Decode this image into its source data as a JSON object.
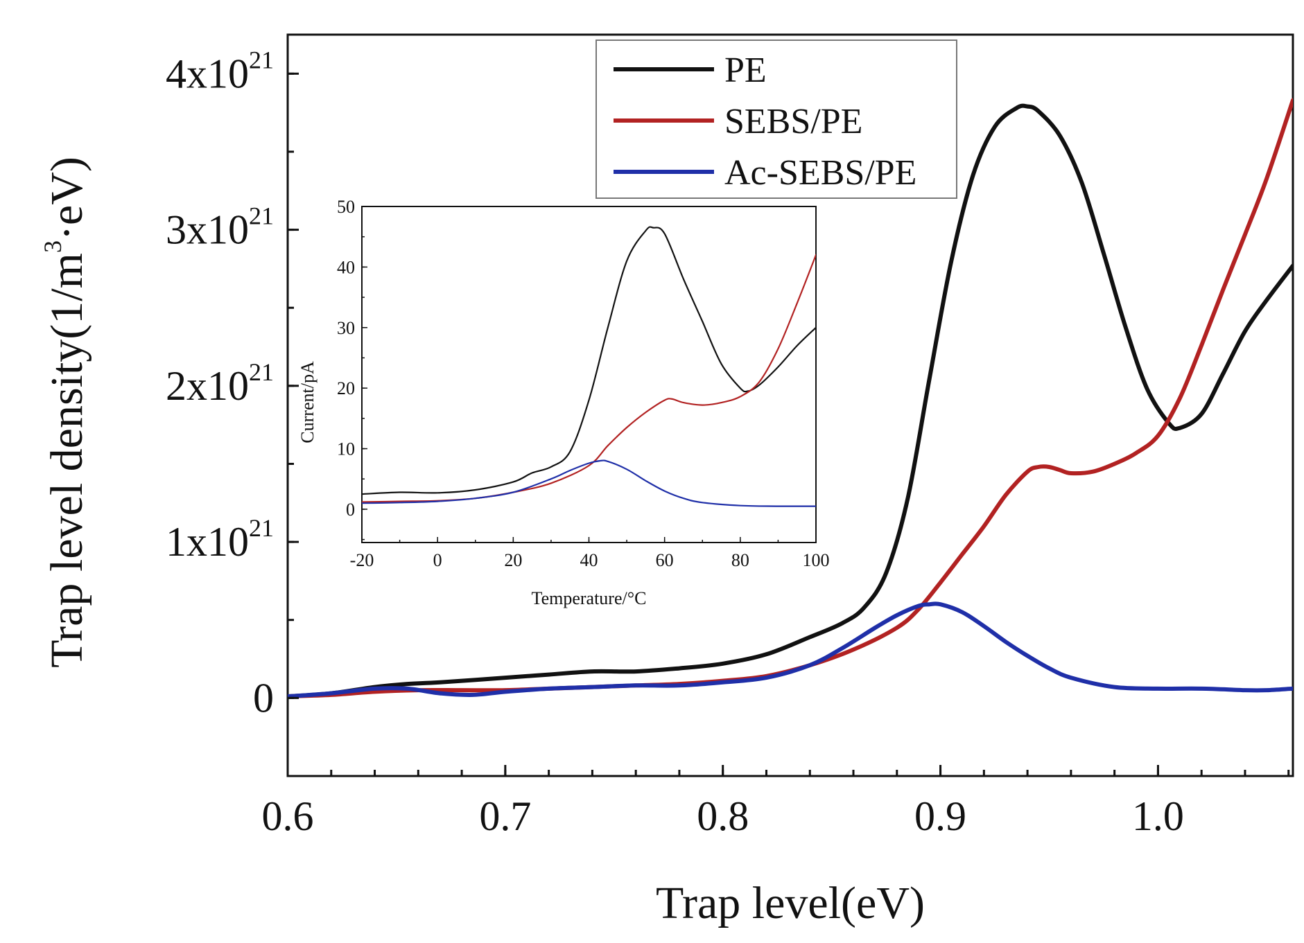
{
  "chart_data": [
    {
      "type": "line",
      "xlabel": "Trap level(eV)",
      "ylabel": "Trap level density(1/m³·eV)",
      "ylabel_parts": {
        "pre": "Trap level density(1/m",
        "sup": "3",
        "post": "·eV)"
      },
      "xlim": [
        0.6,
        1.062
      ],
      "ylim": [
        -0.5,
        4.25
      ],
      "y_scale_note": "values in units of 1x10^21",
      "xticks": [
        {
          "value": 0.6,
          "label": "0.6"
        },
        {
          "value": 0.7,
          "label": "0.7"
        },
        {
          "value": 0.8,
          "label": "0.8"
        },
        {
          "value": 0.9,
          "label": "0.9"
        },
        {
          "value": 1.0,
          "label": "1.0"
        }
      ],
      "yticks": [
        {
          "value": 0,
          "label": "0"
        },
        {
          "value": 1,
          "base": "1x10",
          "exp": "21"
        },
        {
          "value": 2,
          "base": "2x10",
          "exp": "21"
        },
        {
          "value": 3,
          "base": "3x10",
          "exp": "21"
        },
        {
          "value": 4,
          "base": "4x10",
          "exp": "21"
        }
      ],
      "legend": {
        "position": "top-center"
      },
      "series": [
        {
          "name": "PE",
          "color": "#111111",
          "x": [
            0.6,
            0.62,
            0.64,
            0.655,
            0.67,
            0.7,
            0.72,
            0.74,
            0.76,
            0.78,
            0.8,
            0.82,
            0.84,
            0.855,
            0.865,
            0.875,
            0.885,
            0.895,
            0.905,
            0.915,
            0.925,
            0.935,
            0.94,
            0.945,
            0.955,
            0.965,
            0.975,
            0.985,
            0.995,
            1.005,
            1.01,
            1.02,
            1.03,
            1.04,
            1.05,
            1.062
          ],
          "y": [
            0.01,
            0.03,
            0.07,
            0.09,
            0.1,
            0.13,
            0.15,
            0.17,
            0.17,
            0.19,
            0.22,
            0.28,
            0.39,
            0.48,
            0.58,
            0.8,
            1.28,
            2.05,
            2.8,
            3.35,
            3.66,
            3.78,
            3.79,
            3.76,
            3.6,
            3.3,
            2.85,
            2.38,
            1.98,
            1.76,
            1.73,
            1.82,
            2.08,
            2.35,
            2.55,
            2.77
          ]
        },
        {
          "name": "SEBS/PE",
          "color": "#b22222",
          "x": [
            0.6,
            0.62,
            0.64,
            0.66,
            0.68,
            0.7,
            0.72,
            0.74,
            0.76,
            0.78,
            0.8,
            0.82,
            0.84,
            0.86,
            0.88,
            0.89,
            0.9,
            0.91,
            0.92,
            0.93,
            0.94,
            0.945,
            0.95,
            0.955,
            0.96,
            0.97,
            0.98,
            0.99,
            1.0,
            1.01,
            1.02,
            1.03,
            1.04,
            1.05,
            1.062
          ],
          "y": [
            0.01,
            0.02,
            0.04,
            0.05,
            0.05,
            0.05,
            0.06,
            0.07,
            0.08,
            0.09,
            0.11,
            0.14,
            0.21,
            0.31,
            0.45,
            0.57,
            0.74,
            0.92,
            1.1,
            1.3,
            1.45,
            1.48,
            1.48,
            1.46,
            1.44,
            1.45,
            1.5,
            1.57,
            1.68,
            1.92,
            2.26,
            2.62,
            2.97,
            3.33,
            3.83
          ]
        },
        {
          "name": "Ac-SEBS/PE",
          "color": "#1f2fa8",
          "x": [
            0.6,
            0.62,
            0.64,
            0.655,
            0.67,
            0.685,
            0.7,
            0.72,
            0.74,
            0.76,
            0.78,
            0.8,
            0.82,
            0.84,
            0.855,
            0.87,
            0.88,
            0.89,
            0.895,
            0.9,
            0.91,
            0.92,
            0.93,
            0.94,
            0.95,
            0.96,
            0.98,
            1.0,
            1.02,
            1.04,
            1.05,
            1.062
          ],
          "y": [
            0.01,
            0.03,
            0.06,
            0.06,
            0.03,
            0.02,
            0.04,
            0.06,
            0.07,
            0.08,
            0.08,
            0.1,
            0.13,
            0.21,
            0.32,
            0.45,
            0.53,
            0.59,
            0.6,
            0.6,
            0.55,
            0.46,
            0.36,
            0.27,
            0.19,
            0.13,
            0.07,
            0.06,
            0.06,
            0.05,
            0.05,
            0.06
          ]
        }
      ]
    },
    {
      "type": "line",
      "position": "inset",
      "xlabel": "Temperature/°C",
      "ylabel": "Current/pA",
      "xlim": [
        -20,
        100
      ],
      "ylim": [
        -5.5,
        50
      ],
      "xticks": [
        {
          "value": -20,
          "label": "-20"
        },
        {
          "value": 0,
          "label": "0"
        },
        {
          "value": 20,
          "label": "20"
        },
        {
          "value": 40,
          "label": "40"
        },
        {
          "value": 60,
          "label": "60"
        },
        {
          "value": 80,
          "label": "80"
        },
        {
          "value": 100,
          "label": "100"
        }
      ],
      "yticks": [
        {
          "value": 0,
          "label": "0"
        },
        {
          "value": 10,
          "label": "10"
        },
        {
          "value": 20,
          "label": "20"
        },
        {
          "value": 30,
          "label": "30"
        },
        {
          "value": 40,
          "label": "40"
        },
        {
          "value": 50,
          "label": "50"
        }
      ],
      "series": [
        {
          "name": "PE",
          "color": "#111111",
          "x": [
            -20,
            -10,
            0,
            10,
            20,
            25,
            30,
            35,
            40,
            45,
            50,
            55,
            57,
            60,
            65,
            70,
            75,
            80,
            82,
            85,
            90,
            95,
            100
          ],
          "y": [
            2.5,
            2.8,
            2.7,
            3.2,
            4.5,
            6,
            7,
            9.5,
            18,
            30,
            41,
            46,
            46.5,
            45.5,
            38,
            31,
            24,
            20,
            19.5,
            20.5,
            23.5,
            27,
            30
          ]
        },
        {
          "name": "SEBS/PE",
          "color": "#b22222",
          "x": [
            -20,
            -10,
            0,
            10,
            20,
            30,
            40,
            45,
            50,
            55,
            60,
            62,
            65,
            70,
            75,
            80,
            85,
            90,
            95,
            100
          ],
          "y": [
            1.2,
            1.3,
            1.4,
            1.8,
            2.8,
            4.3,
            7.2,
            10.5,
            13.5,
            16,
            18,
            18.2,
            17.6,
            17.2,
            17.6,
            18.6,
            21,
            26.5,
            34,
            42
          ]
        },
        {
          "name": "Ac-SEBS/PE",
          "color": "#1f2fa8",
          "x": [
            -20,
            -10,
            0,
            10,
            20,
            30,
            35,
            40,
            43,
            45,
            50,
            55,
            60,
            65,
            70,
            80,
            90,
            100
          ],
          "y": [
            1.0,
            1.1,
            1.3,
            1.8,
            2.8,
            5.0,
            6.4,
            7.6,
            8.0,
            7.9,
            6.6,
            4.7,
            3.0,
            1.8,
            1.1,
            0.6,
            0.5,
            0.5
          ]
        }
      ]
    }
  ]
}
